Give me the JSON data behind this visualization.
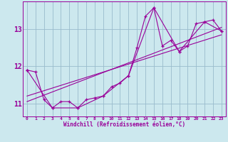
{
  "xlabel": "Windchill (Refroidissement éolien,°C)",
  "bg_color": "#cce8ee",
  "line_color": "#990099",
  "grid_color": "#99bbcc",
  "xlim": [
    -0.5,
    23.5
  ],
  "ylim": [
    10.65,
    13.75
  ],
  "yticks": [
    11,
    12,
    13
  ],
  "xticks": [
    0,
    1,
    2,
    3,
    4,
    5,
    6,
    7,
    8,
    9,
    10,
    11,
    12,
    13,
    14,
    15,
    16,
    17,
    18,
    19,
    20,
    21,
    22,
    23
  ],
  "series1_x": [
    0,
    1,
    2,
    3,
    4,
    5,
    6,
    7,
    8,
    9,
    10,
    11,
    12,
    13,
    14,
    15,
    16,
    17,
    18,
    19,
    20,
    21,
    22,
    23
  ],
  "series1_y": [
    11.9,
    11.85,
    11.1,
    10.88,
    11.05,
    11.05,
    10.88,
    11.1,
    11.15,
    11.2,
    11.45,
    11.55,
    11.75,
    12.5,
    13.35,
    13.58,
    12.55,
    12.7,
    12.4,
    12.55,
    13.15,
    13.2,
    13.25,
    12.95
  ],
  "series2_x": [
    0,
    3,
    6,
    9,
    12,
    15,
    18,
    21,
    23
  ],
  "series2_y": [
    11.9,
    10.88,
    10.88,
    11.2,
    11.75,
    13.58,
    12.4,
    13.2,
    12.95
  ],
  "series3_x": [
    0,
    23
  ],
  "series3_y": [
    11.05,
    13.05
  ],
  "series4_x": [
    0,
    23
  ],
  "series4_y": [
    11.2,
    12.85
  ]
}
